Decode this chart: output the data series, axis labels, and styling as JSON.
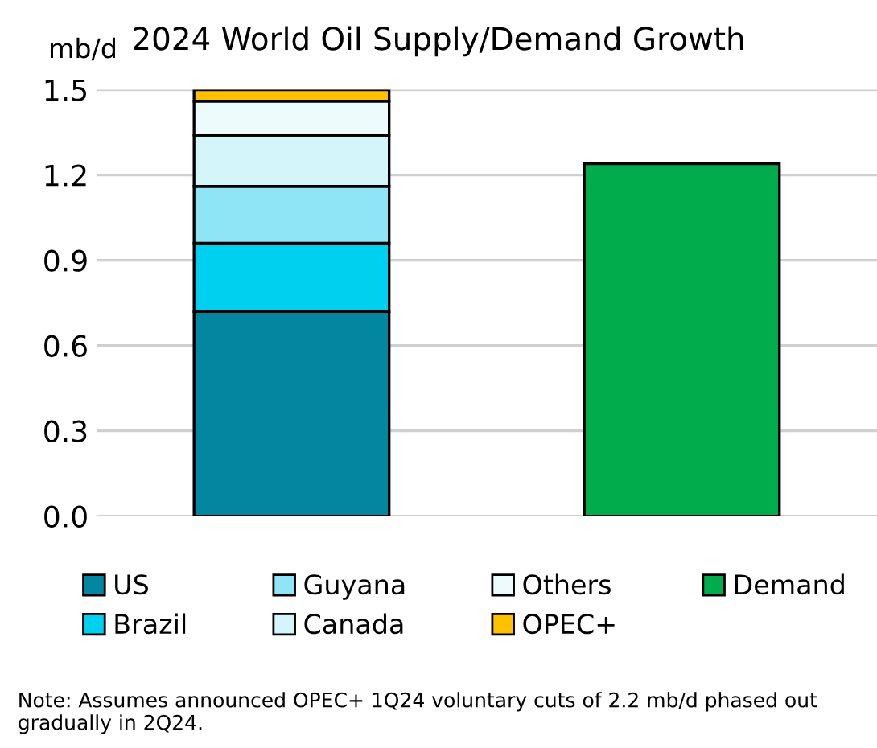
{
  "chart_data": {
    "type": "bar",
    "title": "2024 World Oil Supply/Demand Growth",
    "ylabel": "mb/d",
    "categories": [
      null,
      null
    ],
    "stacked": true,
    "series": [
      {
        "name": "US",
        "color": "#03869f",
        "values": [
          0.72,
          null
        ]
      },
      {
        "name": "Brazil",
        "color": "#00d0f0",
        "values": [
          0.24,
          null
        ]
      },
      {
        "name": "Guyana",
        "color": "#8fe4f5",
        "values": [
          0.2,
          null
        ]
      },
      {
        "name": "Canada",
        "color": "#d4f6fb",
        "values": [
          0.18,
          null
        ]
      },
      {
        "name": "Others",
        "color": "#eefbfd",
        "values": [
          0.12,
          null
        ]
      },
      {
        "name": "OPEC+",
        "color": "#ffc000",
        "values": [
          0.04,
          null
        ]
      },
      {
        "name": "Demand",
        "color": "#00ac4c",
        "values": [
          null,
          1.24
        ]
      }
    ],
    "ylim": [
      0,
      1.5
    ],
    "yticks": [
      {
        "value": 0,
        "label": "0.0"
      },
      0.3,
      0.6,
      0.9,
      1.2,
      1.5
    ],
    "grid": "y",
    "legend": "bottom",
    "tick_labels": "y",
    "annotations": [
      "Note: Assumes announced OPEC+ 1Q24 voluntary cuts of 2.2 mb/d phased out gradually in 2Q24."
    ]
  }
}
